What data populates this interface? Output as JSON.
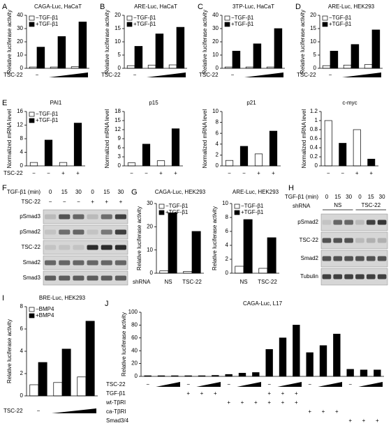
{
  "chart_data": [
    {
      "panel": "A",
      "type": "bar",
      "title": "CAGA-Luc, HaCaT",
      "ylabel": "Relative luciferase activity",
      "xlabel": "TSC-22",
      "ylim": [
        0,
        40
      ],
      "yticks": [
        0,
        10,
        20,
        30,
        40
      ],
      "legend": "upper left",
      "categories": [
        "−",
        null,
        null
      ],
      "series": [
        {
          "name": "−TGF-β1",
          "color": "#ffffff",
          "values": [
            1,
            1,
            1.2
          ]
        },
        {
          "name": "+TGF-β1",
          "color": "#000000",
          "values": [
            16,
            24,
            35
          ]
        }
      ]
    },
    {
      "panel": "B",
      "type": "bar",
      "title": "ARE-Luc, HaCaT",
      "ylabel": "Relative luciferase activity",
      "xlabel": "TSC-22",
      "ylim": [
        0,
        20
      ],
      "yticks": [
        0,
        5,
        10,
        15,
        20
      ],
      "legend": "upper left",
      "categories": [
        "−",
        null,
        null
      ],
      "series": [
        {
          "name": "−TGF-β1",
          "color": "#ffffff",
          "values": [
            1,
            1.2,
            1.3
          ]
        },
        {
          "name": "+TGF-β1",
          "color": "#000000",
          "values": [
            8.3,
            13,
            15.5
          ]
        }
      ]
    },
    {
      "panel": "C",
      "type": "bar",
      "title": "3TP-Luc, HaCaT",
      "ylabel": "Relative luciferase activity",
      "xlabel": "TSC-22",
      "ylim": [
        0,
        40
      ],
      "yticks": [
        0,
        10,
        20,
        30,
        40
      ],
      "legend": "upper left",
      "categories": [
        "−",
        null,
        null
      ],
      "series": [
        {
          "name": "−TGF-β1",
          "color": "#ffffff",
          "values": [
            1,
            1,
            1
          ]
        },
        {
          "name": "+TGF-β1",
          "color": "#000000",
          "values": [
            13,
            18.5,
            30
          ]
        }
      ]
    },
    {
      "panel": "D",
      "type": "bar",
      "title": "ARE-Luc, HEK293",
      "ylabel": "Relative luciferase activity",
      "xlabel": "TSC-22",
      "ylim": [
        0,
        20
      ],
      "yticks": [
        0,
        5,
        10,
        15,
        20
      ],
      "legend": "upper left",
      "categories": [
        "−",
        null,
        null
      ],
      "series": [
        {
          "name": "−TGF-β1",
          "color": "#ffffff",
          "values": [
            1,
            1.2,
            1.4
          ]
        },
        {
          "name": "+TGF-β1",
          "color": "#000000",
          "values": [
            6.5,
            9,
            14.5
          ]
        }
      ]
    },
    {
      "panel": "E",
      "type": "bar",
      "title": "PAI1",
      "ylabel": "Normalized mRNA level",
      "xlabel": "TSC-22",
      "ylim": [
        0,
        16
      ],
      "yticks": [
        0,
        4,
        8,
        12,
        16
      ],
      "legend": "upper left",
      "categories": [
        "−",
        "−",
        "+",
        "+"
      ],
      "series": [
        {
          "name": "−TGF-β1",
          "color": "#ffffff",
          "values": [
            1,
            null,
            1,
            null
          ]
        },
        {
          "name": "+TGF-β1",
          "color": "#000000",
          "values": [
            null,
            7.6,
            null,
            12.6
          ]
        }
      ]
    },
    {
      "type": "bar",
      "title": "p15",
      "ylabel": "Normalized mRNA level",
      "ylim": [
        0,
        18
      ],
      "yticks": [
        0,
        3,
        6,
        9,
        12,
        15,
        18
      ],
      "categories": [
        "−",
        "−",
        "+",
        "+"
      ],
      "series": [
        {
          "color": "#ffffff",
          "values": [
            1,
            null,
            1.7,
            null
          ]
        },
        {
          "color": "#000000",
          "values": [
            null,
            7.2,
            null,
            12.3
          ]
        }
      ]
    },
    {
      "type": "bar",
      "title": "p21",
      "ylabel": "Normalized mRNA level",
      "ylim": [
        0,
        10
      ],
      "yticks": [
        0,
        2,
        4,
        6,
        8,
        10
      ],
      "categories": [
        "−",
        "−",
        "+",
        "+"
      ],
      "series": [
        {
          "color": "#ffffff",
          "values": [
            1,
            null,
            2.2,
            null
          ]
        },
        {
          "color": "#000000",
          "values": [
            null,
            3.6,
            null,
            6.4
          ]
        }
      ]
    },
    {
      "type": "bar",
      "title": "c-myc",
      "ylabel": "Normalized mRNA level",
      "ylim": [
        0,
        1.2
      ],
      "yticks": [
        0,
        0.2,
        0.4,
        0.6,
        0.8,
        1,
        1.2
      ],
      "categories": [
        "−",
        "−",
        "+",
        "+"
      ],
      "series": [
        {
          "color": "#ffffff",
          "values": [
            1,
            null,
            0.8,
            null
          ]
        },
        {
          "color": "#000000",
          "values": [
            null,
            0.5,
            null,
            0.15
          ]
        }
      ]
    },
    {
      "panel": "G",
      "type": "bar",
      "title": "CAGA-Luc, HEK293",
      "ylabel": "Relative luciferase activity",
      "xlabel": "shRNA",
      "ylim": [
        0,
        30
      ],
      "yticks": [
        0,
        10,
        20,
        30
      ],
      "legend": "upper left",
      "categories": [
        "NS",
        "TSC-22"
      ],
      "series": [
        {
          "name": "−TGF-β1",
          "color": "#ffffff",
          "values": [
            1,
            0.8
          ]
        },
        {
          "name": "+TGF-β1",
          "color": "#000000",
          "values": [
            26,
            18
          ]
        }
      ]
    },
    {
      "type": "bar",
      "title": "ARE-Luc, HEK293",
      "ylabel": "Relative luciferase activity",
      "ylim": [
        0,
        10
      ],
      "yticks": [
        0,
        2,
        4,
        6,
        8,
        10
      ],
      "legend": "upper left",
      "categories": [
        "NS",
        "TSC-22"
      ],
      "series": [
        {
          "name": "−TGF-β1",
          "color": "#ffffff",
          "values": [
            1,
            0.7
          ]
        },
        {
          "name": "+TGF-β1",
          "color": "#000000",
          "values": [
            7.7,
            5.1
          ]
        }
      ]
    },
    {
      "panel": "I",
      "type": "bar",
      "title": "BRE-Luc, HEK293",
      "ylabel": "Relative luciferase activity",
      "xlabel": "TSC-22",
      "ylim": [
        0,
        8
      ],
      "yticks": [
        0,
        2,
        4,
        6,
        8
      ],
      "legend": "upper left",
      "categories": [
        "−",
        null,
        null
      ],
      "series": [
        {
          "name": "−BMP4",
          "color": "#ffffff",
          "values": [
            1,
            1.2,
            1.7
          ]
        },
        {
          "name": "+BMP4",
          "color": "#000000",
          "values": [
            3,
            4.2,
            6.7
          ]
        }
      ]
    },
    {
      "panel": "J",
      "type": "bar",
      "title": "CAGA-Luc, L17",
      "ylabel": "Relative luciferase activity",
      "xlabel": "TSC-22",
      "ylim": [
        0,
        100
      ],
      "yticks": [
        0,
        20,
        40,
        60,
        80,
        100
      ],
      "categories": [
        "−",
        null,
        null,
        "−",
        null,
        null,
        "−",
        null,
        null,
        "−",
        null,
        null,
        "−",
        null,
        null,
        "−",
        null,
        null
      ],
      "series": [
        {
          "color": "#000000",
          "values": [
            1,
            1,
            1,
            1,
            1,
            1.5,
            3,
            5,
            6,
            42,
            60,
            80,
            37,
            48,
            66,
            11,
            10,
            10
          ]
        }
      ],
      "conditions": [
        {
          "name": "TGF-β1",
          "marks": [
            null,
            null,
            null,
            "+",
            "+",
            "+",
            null,
            null,
            null,
            "+",
            "+",
            "+",
            null,
            null,
            null,
            null,
            null,
            null
          ]
        },
        {
          "name": "wt-TβRI",
          "marks": [
            null,
            null,
            null,
            null,
            null,
            null,
            "+",
            "+",
            "+",
            "+",
            "+",
            "+",
            null,
            null,
            null,
            null,
            null,
            null
          ]
        },
        {
          "name": "ca-TβRI",
          "marks": [
            null,
            null,
            null,
            null,
            null,
            null,
            null,
            null,
            null,
            null,
            null,
            null,
            "+",
            "+",
            "+",
            null,
            null,
            null
          ]
        },
        {
          "name": "Smad3/4",
          "marks": [
            null,
            null,
            null,
            null,
            null,
            null,
            null,
            null,
            null,
            null,
            null,
            null,
            null,
            null,
            null,
            "+",
            "+",
            "+"
          ]
        }
      ]
    }
  ],
  "blots": [
    {
      "panel": "F",
      "header": "TGF-β1 (min)",
      "lanes": [
        "0",
        "15",
        "30",
        "0",
        "15",
        "30"
      ],
      "row_label": "TSC-22",
      "row_marks": [
        "−",
        "−",
        "−",
        "+",
        "+",
        "+"
      ],
      "bands": [
        "pSmad3",
        "pSmad2",
        "TSC-22",
        "Smad2",
        "Smad3"
      ]
    },
    {
      "panel": "H",
      "header": "TGF-β1 (min)",
      "lanes": [
        "0",
        "15",
        "30",
        "0",
        "15",
        "30"
      ],
      "group_label": "shRNA",
      "groups": [
        "NS",
        "TSC-22"
      ],
      "bands": [
        "pSmad2",
        "TSC-22",
        "Smad2",
        "Tubulin"
      ]
    }
  ]
}
